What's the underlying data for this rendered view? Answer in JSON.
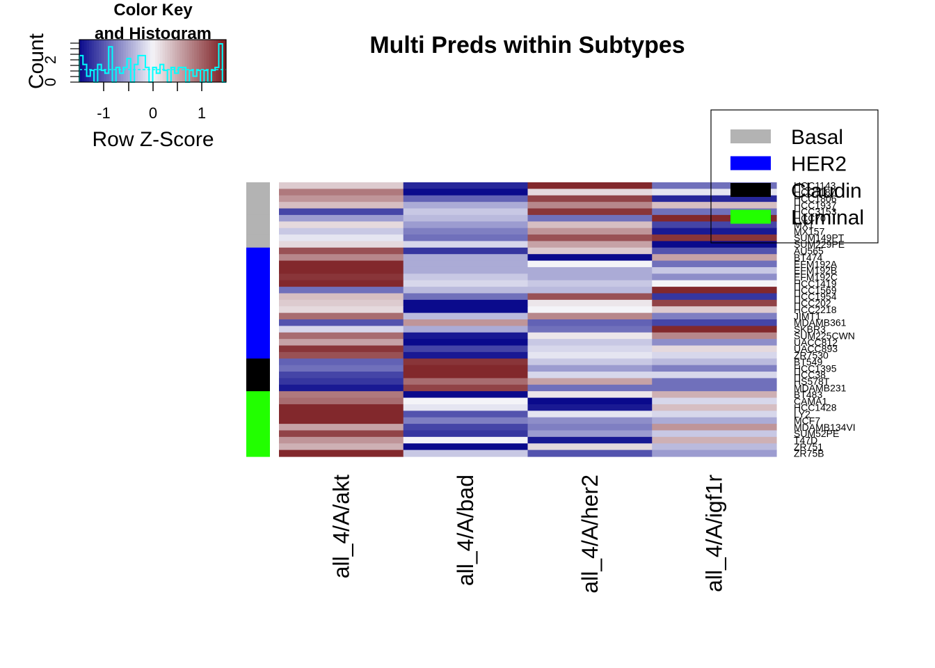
{
  "chart_data": {
    "type": "heatmap",
    "title": "Multi Preds within Subtypes",
    "columns": [
      "all_4/A/akt",
      "all_4/A/bad",
      "all_4/A/her2",
      "all_4/A/igf1r"
    ],
    "rows": [
      "HCC1143",
      "HCC1187",
      "HCC1806",
      "HCC1937",
      "HCC3153",
      "HCC70",
      "MX1",
      "MX157",
      "SUM149PT",
      "SUM229PE",
      "AU565",
      "BT474",
      "EFM192A",
      "EFM192B",
      "EFM192C",
      "HCC1419",
      "HCC1569",
      "HCC1954",
      "HCC202",
      "HCC2218",
      "JIMT1",
      "MDAMB361",
      "SKBR3",
      "SUM225CWN",
      "UACC812",
      "UACC893",
      "ZR7530",
      "BT549",
      "HCC1395",
      "HCC38",
      "HS578T",
      "MDAMB231",
      "BT483",
      "CAMA1",
      "HCC1428",
      "LY2",
      "MCF7",
      "MDAMB134VI",
      "SUM52PE",
      "T47D",
      "ZR751",
      "ZR75B"
    ],
    "row_subtype": [
      "Basal",
      "Basal",
      "Basal",
      "Basal",
      "Basal",
      "Basal",
      "Basal",
      "Basal",
      "Basal",
      "Basal",
      "HER2",
      "HER2",
      "HER2",
      "HER2",
      "HER2",
      "HER2",
      "HER2",
      "HER2",
      "HER2",
      "HER2",
      "HER2",
      "HER2",
      "HER2",
      "HER2",
      "HER2",
      "HER2",
      "HER2",
      "Claudin",
      "Claudin",
      "Claudin",
      "Claudin",
      "Claudin",
      "Luminal",
      "Luminal",
      "Luminal",
      "Luminal",
      "Luminal",
      "Luminal",
      "Luminal",
      "Luminal",
      "Luminal",
      "Luminal"
    ],
    "values": [
      [
        0.3,
        -1.4,
        1.5,
        -0.9
      ],
      [
        0.9,
        -1.6,
        0.2,
        -0.1
      ],
      [
        0.7,
        -1.0,
        1.3,
        -1.4
      ],
      [
        0.4,
        -0.5,
        0.8,
        0.4
      ],
      [
        -1.2,
        -0.3,
        1.4,
        -0.9
      ],
      [
        -0.6,
        -0.4,
        -0.9,
        1.5
      ],
      [
        0.2,
        -0.6,
        0.4,
        -1.2
      ],
      [
        -0.3,
        -0.8,
        0.7,
        -1.5
      ],
      [
        -0.1,
        -0.9,
        1.2,
        1.4
      ],
      [
        0.2,
        -0.2,
        0.6,
        -1.6
      ],
      [
        1.2,
        -1.3,
        0.3,
        -1.1
      ],
      [
        0.8,
        -0.5,
        -1.6,
        0.6
      ],
      [
        1.5,
        -0.5,
        0.0,
        -0.9
      ],
      [
        1.5,
        -0.5,
        -0.5,
        -0.3
      ],
      [
        1.4,
        -0.3,
        -0.5,
        -0.7
      ],
      [
        1.5,
        -0.2,
        -0.3,
        0.0
      ],
      [
        -0.9,
        -0.4,
        -0.4,
        1.5
      ],
      [
        0.4,
        -0.9,
        1.2,
        -1.3
      ],
      [
        0.3,
        -1.6,
        0.1,
        1.3
      ],
      [
        0.2,
        -1.6,
        0.0,
        0.3
      ],
      [
        1.0,
        -0.4,
        0.8,
        -0.8
      ],
      [
        -1.1,
        0.7,
        -1.0,
        -1.2
      ],
      [
        -0.2,
        -0.5,
        -0.9,
        1.5
      ],
      [
        1.0,
        -1.5,
        0.1,
        0.8
      ],
      [
        0.6,
        -1.6,
        -0.3,
        -0.7
      ],
      [
        1.4,
        -1.2,
        -0.2,
        0.2
      ],
      [
        1.2,
        -1.5,
        -0.1,
        -0.2
      ],
      [
        -1.0,
        1.4,
        -0.3,
        -0.4
      ],
      [
        -0.9,
        1.5,
        -0.6,
        -0.8
      ],
      [
        -1.2,
        1.5,
        -0.2,
        -0.2
      ],
      [
        -1.3,
        1.0,
        0.6,
        -0.9
      ],
      [
        -1.5,
        1.3,
        -0.9,
        -0.9
      ],
      [
        0.9,
        -1.6,
        0.1,
        0.5
      ],
      [
        1.0,
        0.0,
        -1.6,
        -0.2
      ],
      [
        1.5,
        -0.1,
        -1.5,
        0.4
      ],
      [
        1.5,
        -1.1,
        -0.1,
        -0.2
      ],
      [
        1.5,
        -0.8,
        -0.7,
        -0.5
      ],
      [
        0.6,
        -1.2,
        -0.8,
        0.7
      ],
      [
        1.3,
        -1.3,
        -0.6,
        -0.3
      ],
      [
        0.7,
        0.0,
        -1.5,
        0.5
      ],
      [
        0.5,
        -1.6,
        0.2,
        -0.4
      ],
      [
        1.5,
        -0.3,
        -1.1,
        -0.6
      ]
    ],
    "subtype_legend": [
      {
        "name": "Basal",
        "color": "#b3b3b3"
      },
      {
        "name": "HER2",
        "color": "#0000ff"
      },
      {
        "name": "Claudin",
        "color": "#000000"
      },
      {
        "name": "Luminal",
        "color": "#22ff00"
      }
    ],
    "color_scale": {
      "low": "#0a0a8c",
      "mid": "#f4f4f8",
      "high": "#7a1a1e",
      "range": [
        -1.6,
        1.6
      ]
    },
    "color_key": {
      "title_line1": "Color Key",
      "title_line2": "and Histogram",
      "xlabel": "Row Z-Score",
      "ylabel": "Count",
      "xticks": [
        "-1",
        "0",
        "1"
      ],
      "yticks": [
        "0",
        "2"
      ],
      "histogram_color": "#00ffff"
    }
  }
}
